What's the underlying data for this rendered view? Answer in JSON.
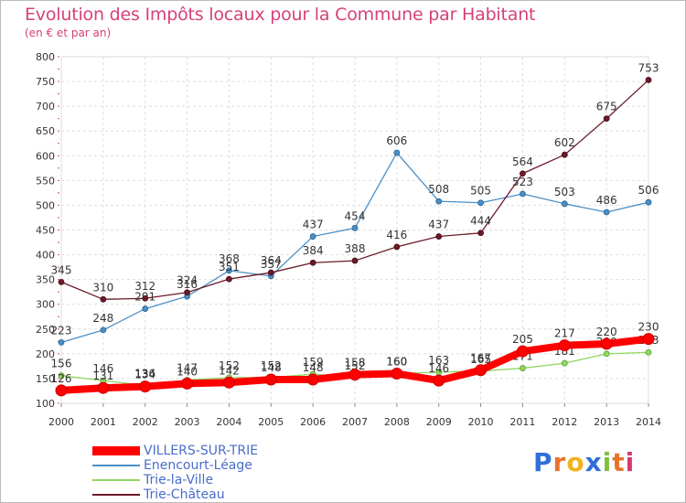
{
  "header": {
    "title": "Evolution des Impôts locaux pour la Commune par Habitant",
    "subtitle": "(en € et par an)"
  },
  "chart_data": {
    "type": "line",
    "title": "Evolution des Impôts locaux pour la Commune par Habitant",
    "subtitle": "(en € et par an)",
    "xlabel": "",
    "ylabel": "",
    "x": [
      "2000",
      "2001",
      "2002",
      "2003",
      "2004",
      "2005",
      "2006",
      "2007",
      "2008",
      "2009",
      "2010",
      "2011",
      "2012",
      "2013",
      "2014"
    ],
    "ylim": [
      100,
      800
    ],
    "yticks": [
      "100",
      "150",
      "200",
      "250",
      "300",
      "350",
      "400",
      "450",
      "500",
      "550",
      "600",
      "650",
      "700",
      "750",
      "800"
    ],
    "grid": true,
    "legend_position": "bottom-left",
    "series": [
      {
        "name": "VILLERS-SUR-TRIE",
        "color": "#ff0000",
        "values": [
          126,
          131,
          134,
          140,
          142,
          148,
          148,
          158,
          160,
          146,
          167,
          205,
          217,
          220,
          230
        ]
      },
      {
        "name": "Enencourt-Léage",
        "color": "#4a90c8",
        "values": [
          223,
          248,
          291,
          316,
          368,
          357,
          437,
          454,
          606,
          508,
          505,
          523,
          503,
          486,
          506
        ]
      },
      {
        "name": "Trie-la-Ville",
        "color": "#90d860",
        "values": [
          156,
          146,
          136,
          147,
          152,
          152,
          159,
          152,
          160,
          163,
          165,
          171,
          181,
          200,
          203
        ]
      },
      {
        "name": "Trie-Château",
        "color": "#6b1a28",
        "values": [
          345,
          310,
          312,
          324,
          351,
          364,
          384,
          388,
          416,
          437,
          444,
          564,
          602,
          675,
          753
        ]
      }
    ]
  },
  "logo": {
    "letters": [
      "P",
      "r",
      "o",
      "x",
      "i",
      "t",
      "i"
    ],
    "colors": [
      "#2f6fd8",
      "#e8742a",
      "#f2b21a",
      "#2f6fd8",
      "#7cc242",
      "#e8742a",
      "#d93a6a"
    ]
  }
}
